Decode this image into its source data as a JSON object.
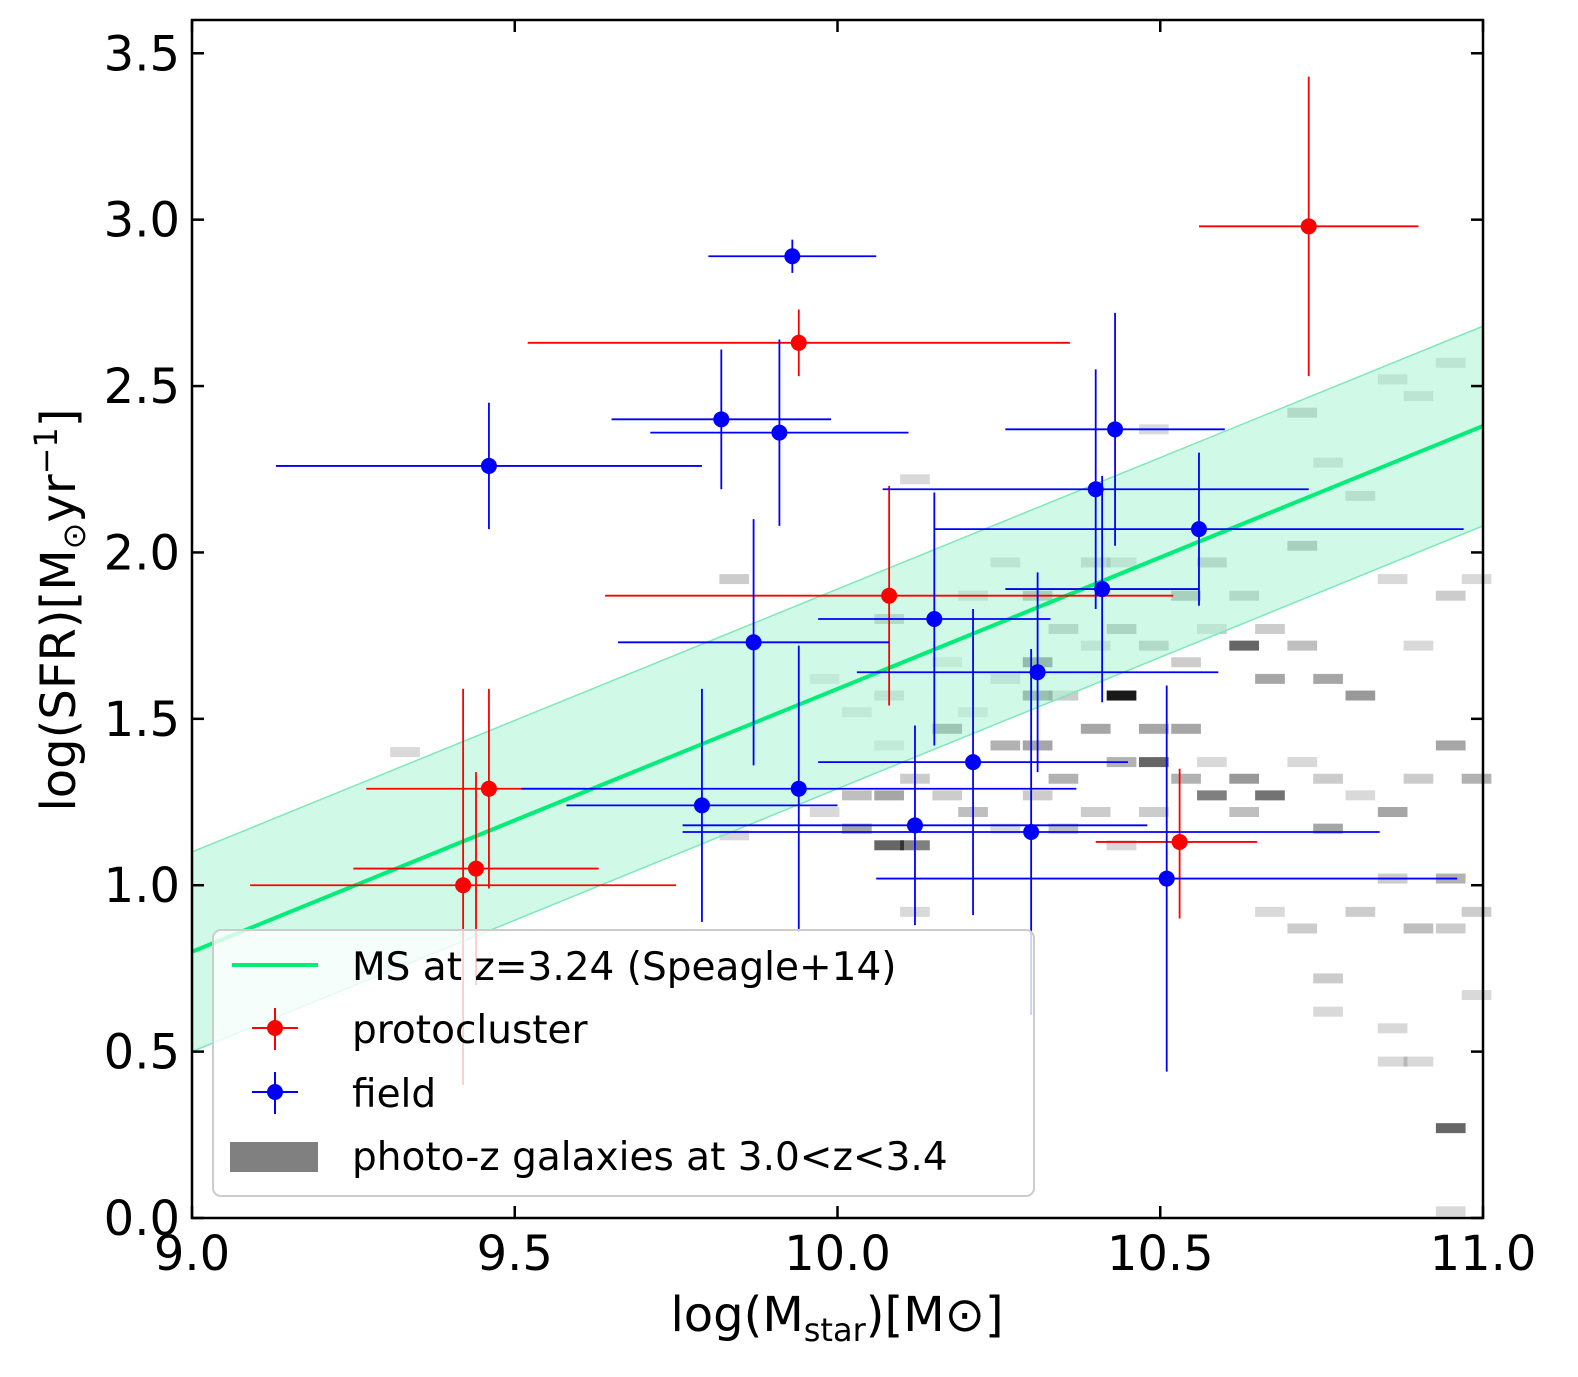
{
  "chart_data": {
    "type": "scatter",
    "xlabel": "log(M_star)[M_sun]",
    "ylabel": "log(SFR)[M_sun yr^-1]",
    "xlabel_parts": {
      "pre": "log(M",
      "sub": "star",
      "post": ")[M",
      "post2": "]"
    },
    "ylabel_parts": {
      "pre": "log(SFR)[M",
      "mid": "yr",
      "sup": "−1",
      "post": "]"
    },
    "xlim": [
      9.0,
      11.0
    ],
    "ylim": [
      0.0,
      3.6
    ],
    "xticks": [
      9.0,
      9.5,
      10.0,
      10.5,
      11.0
    ],
    "xtick_labels": [
      "9.0",
      "9.5",
      "10.0",
      "10.5",
      "11.0"
    ],
    "yticks": [
      0.0,
      0.5,
      1.0,
      1.5,
      2.0,
      2.5,
      3.0,
      3.5
    ],
    "ytick_labels": [
      "0.0",
      "0.5",
      "1.0",
      "1.5",
      "2.0",
      "2.5",
      "3.0",
      "3.5"
    ],
    "grid": false,
    "legend_position": "lower-left",
    "colors": {
      "protocluster": "#ff0000",
      "field": "#0000ff",
      "ms_line": "#00ee77",
      "ms_band": "#b3f5d8",
      "background_hist": "#808080"
    },
    "main_sequence": {
      "name": "MS at z=3.24 (Speagle+14)",
      "x": [
        9.0,
        11.0
      ],
      "y": [
        0.8,
        2.38
      ],
      "band_halfwidth": 0.3
    },
    "series": [
      {
        "name": "protocluster",
        "color": "#ff0000",
        "points": [
          {
            "x": 9.42,
            "y": 1.0,
            "xerr": [
              0.33,
              0.33
            ],
            "yerr": [
              0.6,
              0.59
            ]
          },
          {
            "x": 9.44,
            "y": 1.05,
            "xerr": [
              0.19,
              0.19
            ],
            "yerr": [
              0.35,
              0.29
            ]
          },
          {
            "x": 9.46,
            "y": 1.29,
            "xerr": [
              0.19,
              0.15
            ],
            "yerr": [
              0.3,
              0.3
            ]
          },
          {
            "x": 9.94,
            "y": 2.63,
            "xerr": [
              0.42,
              0.42
            ],
            "yerr": [
              0.1,
              0.1
            ]
          },
          {
            "x": 10.08,
            "y": 1.87,
            "xerr": [
              0.44,
              0.44
            ],
            "yerr": [
              0.33,
              0.33
            ]
          },
          {
            "x": 10.53,
            "y": 1.13,
            "xerr": [
              0.13,
              0.12
            ],
            "yerr": [
              0.23,
              0.22
            ]
          },
          {
            "x": 10.73,
            "y": 2.98,
            "xerr": [
              0.17,
              0.17
            ],
            "yerr": [
              0.45,
              0.45
            ]
          }
        ]
      },
      {
        "name": "field",
        "color": "#0000ff",
        "points": [
          {
            "x": 9.46,
            "y": 2.26,
            "xerr": [
              0.33,
              0.33
            ],
            "yerr": [
              0.19,
              0.19
            ]
          },
          {
            "x": 9.82,
            "y": 2.4,
            "xerr": [
              0.17,
              0.17
            ],
            "yerr": [
              0.21,
              0.21
            ]
          },
          {
            "x": 9.91,
            "y": 2.36,
            "xerr": [
              0.2,
              0.2
            ],
            "yerr": [
              0.28,
              0.28
            ]
          },
          {
            "x": 9.93,
            "y": 2.89,
            "xerr": [
              0.13,
              0.13
            ],
            "yerr": [
              0.05,
              0.05
            ]
          },
          {
            "x": 9.87,
            "y": 1.73,
            "xerr": [
              0.21,
              0.21
            ],
            "yerr": [
              0.37,
              0.37
            ]
          },
          {
            "x": 9.79,
            "y": 1.24,
            "xerr": [
              0.21,
              0.21
            ],
            "yerr": [
              0.35,
              0.35
            ]
          },
          {
            "x": 9.94,
            "y": 1.29,
            "xerr": [
              0.43,
              0.43
            ],
            "yerr": [
              0.43,
              0.43
            ]
          },
          {
            "x": 10.12,
            "y": 1.18,
            "xerr": [
              0.36,
              0.36
            ],
            "yerr": [
              0.3,
              0.3
            ]
          },
          {
            "x": 10.15,
            "y": 1.8,
            "xerr": [
              0.18,
              0.18
            ],
            "yerr": [
              0.38,
              0.38
            ]
          },
          {
            "x": 10.21,
            "y": 1.37,
            "xerr": [
              0.24,
              0.24
            ],
            "yerr": [
              0.46,
              0.46
            ]
          },
          {
            "x": 10.3,
            "y": 1.16,
            "xerr": [
              0.54,
              0.54
            ],
            "yerr": [
              0.55,
              0.55
            ]
          },
          {
            "x": 10.31,
            "y": 1.64,
            "xerr": [
              0.28,
              0.28
            ],
            "yerr": [
              0.3,
              0.3
            ]
          },
          {
            "x": 10.4,
            "y": 2.19,
            "xerr": [
              0.33,
              0.33
            ],
            "yerr": [
              0.36,
              0.36
            ]
          },
          {
            "x": 10.41,
            "y": 1.89,
            "xerr": [
              0.15,
              0.15
            ],
            "yerr": [
              0.34,
              0.34
            ]
          },
          {
            "x": 10.43,
            "y": 2.37,
            "xerr": [
              0.17,
              0.17
            ],
            "yerr": [
              0.35,
              0.35
            ]
          },
          {
            "x": 10.56,
            "y": 2.07,
            "xerr": [
              0.41,
              0.41
            ],
            "yerr": [
              0.23,
              0.23
            ]
          },
          {
            "x": 10.51,
            "y": 1.02,
            "xerr": [
              0.45,
              0.45
            ],
            "yerr": [
              0.58,
              0.58
            ]
          }
        ]
      }
    ],
    "background_histogram": {
      "name": "photo-z galaxies at 3.0<z<3.4",
      "bin_width_x": 0.046,
      "bin_height_y": 0.1,
      "cells": [
        [
          9.33,
          1.4,
          0.15
        ],
        [
          9.84,
          1.92,
          0.2
        ],
        [
          9.84,
          1.15,
          0.15
        ],
        [
          9.98,
          1.22,
          0.15
        ],
        [
          9.98,
          1.62,
          0.15
        ],
        [
          10.03,
          1.52,
          0.15
        ],
        [
          10.03,
          1.27,
          0.25
        ],
        [
          10.03,
          1.17,
          0.35
        ],
        [
          10.08,
          1.8,
          0.3
        ],
        [
          10.08,
          1.57,
          0.2
        ],
        [
          10.08,
          1.27,
          0.35
        ],
        [
          10.08,
          1.12,
          0.6
        ],
        [
          10.08,
          1.42,
          0.15
        ],
        [
          10.12,
          2.22,
          0.15
        ],
        [
          10.12,
          1.32,
          0.2
        ],
        [
          10.12,
          1.12,
          0.5
        ],
        [
          10.12,
          0.92,
          0.15
        ],
        [
          10.17,
          1.47,
          0.5
        ],
        [
          10.17,
          1.27,
          0.2
        ],
        [
          10.17,
          1.67,
          0.15
        ],
        [
          10.21,
          1.52,
          0.15
        ],
        [
          10.21,
          1.22,
          0.25
        ],
        [
          10.21,
          1.87,
          0.2
        ],
        [
          10.26,
          1.97,
          0.2
        ],
        [
          10.26,
          1.62,
          0.2
        ],
        [
          10.26,
          1.42,
          0.3
        ],
        [
          10.26,
          1.17,
          0.15
        ],
        [
          10.31,
          1.87,
          0.4
        ],
        [
          10.31,
          1.67,
          0.6
        ],
        [
          10.31,
          1.57,
          0.55
        ],
        [
          10.31,
          1.42,
          0.35
        ],
        [
          10.31,
          1.27,
          0.2
        ],
        [
          10.35,
          1.77,
          0.3
        ],
        [
          10.35,
          1.57,
          0.2
        ],
        [
          10.35,
          1.32,
          0.3
        ],
        [
          10.35,
          1.17,
          0.25
        ],
        [
          10.4,
          1.97,
          0.25
        ],
        [
          10.4,
          1.72,
          0.2
        ],
        [
          10.4,
          1.47,
          0.35
        ],
        [
          10.4,
          1.22,
          0.2
        ],
        [
          10.44,
          1.97,
          0.2
        ],
        [
          10.44,
          1.77,
          0.35
        ],
        [
          10.44,
          1.57,
          0.9
        ],
        [
          10.44,
          1.37,
          0.3
        ],
        [
          10.44,
          1.12,
          0.15
        ],
        [
          10.49,
          2.37,
          0.15
        ],
        [
          10.49,
          1.72,
          0.3
        ],
        [
          10.49,
          1.47,
          0.35
        ],
        [
          10.49,
          1.37,
          0.6
        ],
        [
          10.49,
          1.22,
          0.2
        ],
        [
          10.54,
          1.87,
          0.4
        ],
        [
          10.54,
          1.67,
          0.2
        ],
        [
          10.54,
          1.47,
          0.35
        ],
        [
          10.54,
          1.32,
          0.3
        ],
        [
          10.58,
          1.97,
          0.3
        ],
        [
          10.58,
          1.77,
          0.2
        ],
        [
          10.58,
          1.27,
          0.5
        ],
        [
          10.58,
          1.37,
          0.15
        ],
        [
          10.63,
          1.87,
          0.3
        ],
        [
          10.63,
          1.72,
          0.6
        ],
        [
          10.63,
          1.32,
          0.4
        ],
        [
          10.63,
          1.22,
          0.25
        ],
        [
          10.67,
          1.77,
          0.2
        ],
        [
          10.67,
          1.62,
          0.35
        ],
        [
          10.67,
          1.27,
          0.55
        ],
        [
          10.67,
          0.92,
          0.15
        ],
        [
          10.72,
          2.42,
          0.3
        ],
        [
          10.72,
          2.02,
          0.4
        ],
        [
          10.72,
          1.72,
          0.25
        ],
        [
          10.72,
          1.37,
          0.15
        ],
        [
          10.72,
          0.87,
          0.2
        ],
        [
          10.76,
          2.27,
          0.2
        ],
        [
          10.76,
          1.62,
          0.35
        ],
        [
          10.76,
          1.32,
          0.2
        ],
        [
          10.76,
          1.17,
          0.35
        ],
        [
          10.76,
          0.72,
          0.2
        ],
        [
          10.76,
          0.62,
          0.15
        ],
        [
          10.81,
          2.17,
          0.25
        ],
        [
          10.81,
          1.57,
          0.4
        ],
        [
          10.81,
          1.27,
          0.15
        ],
        [
          10.81,
          0.92,
          0.2
        ],
        [
          10.86,
          2.52,
          0.2
        ],
        [
          10.86,
          1.92,
          0.15
        ],
        [
          10.86,
          1.22,
          0.35
        ],
        [
          10.86,
          1.02,
          0.2
        ],
        [
          10.86,
          0.57,
          0.15
        ],
        [
          10.86,
          0.47,
          0.15
        ],
        [
          10.9,
          2.47,
          0.2
        ],
        [
          10.9,
          1.72,
          0.15
        ],
        [
          10.9,
          1.32,
          0.2
        ],
        [
          10.9,
          0.87,
          0.25
        ],
        [
          10.9,
          0.47,
          0.15
        ],
        [
          10.95,
          2.57,
          0.2
        ],
        [
          10.95,
          1.87,
          0.2
        ],
        [
          10.95,
          1.42,
          0.35
        ],
        [
          10.95,
          1.02,
          0.3
        ],
        [
          10.95,
          0.87,
          0.2
        ],
        [
          10.95,
          0.27,
          0.6
        ],
        [
          10.95,
          0.02,
          0.15
        ],
        [
          10.99,
          1.92,
          0.15
        ],
        [
          10.99,
          1.32,
          0.3
        ],
        [
          10.99,
          0.92,
          0.2
        ],
        [
          10.99,
          0.67,
          0.15
        ]
      ]
    },
    "legend": [
      {
        "label": "MS at z=3.24 (Speagle+14)",
        "kind": "line"
      },
      {
        "label": "protocluster",
        "kind": "errorpoint"
      },
      {
        "label": "field",
        "kind": "errorpoint"
      },
      {
        "label": "photo-z galaxies at 3.0<z<3.4",
        "kind": "patch"
      }
    ]
  }
}
